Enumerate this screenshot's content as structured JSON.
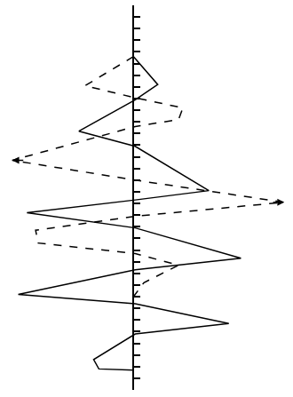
{
  "chart_data": {
    "type": "line",
    "orientation": "horizontal",
    "tick_labels": false,
    "grid": false,
    "xlim": [
      -15,
      18
    ],
    "ylim": [
      0,
      33
    ],
    "yticks": [
      0,
      1,
      2,
      3,
      4,
      5,
      6,
      7,
      8,
      9,
      10,
      11,
      12,
      13,
      14,
      15,
      16,
      17,
      18,
      19,
      20,
      21,
      22,
      23,
      24,
      25,
      26,
      27,
      28,
      29,
      30,
      31,
      32,
      33
    ],
    "series": [
      {
        "color": "#000000",
        "line_style": "solid",
        "y": [
          4.4,
          6.8,
          8.1,
          10.8,
          12.1,
          15.9,
          16.7,
          17.8,
          19.1,
          21.7,
          22.7,
          24.8,
          25.6,
          27.3,
          28.2,
          30.4,
          31.2,
          31.3
        ],
        "values": [
          0,
          2.8,
          0.2,
          -6.3,
          0.2,
          8.7,
          0.2,
          -12.3,
          0.2,
          12.4,
          0.2,
          -13.3,
          0.2,
          11,
          0.2,
          -4.6,
          -4,
          0
        ]
      },
      {
        "color": "#000000",
        "line_style": "dash",
        "marker": "arrow",
        "y": [
          4.4,
          6.9,
          7.9,
          8.8,
          9.8,
          10.4,
          13.3,
          15,
          16.9,
          18.1,
          19.3,
          20.4,
          21.3,
          22.3,
          23.8,
          25
        ],
        "values": [
          0,
          -5.6,
          0,
          5.7,
          5.2,
          0.2,
          -14,
          0.2,
          17.4,
          0.2,
          -11.3,
          -11,
          0.2,
          5.2,
          1.2,
          0
        ]
      }
    ]
  }
}
